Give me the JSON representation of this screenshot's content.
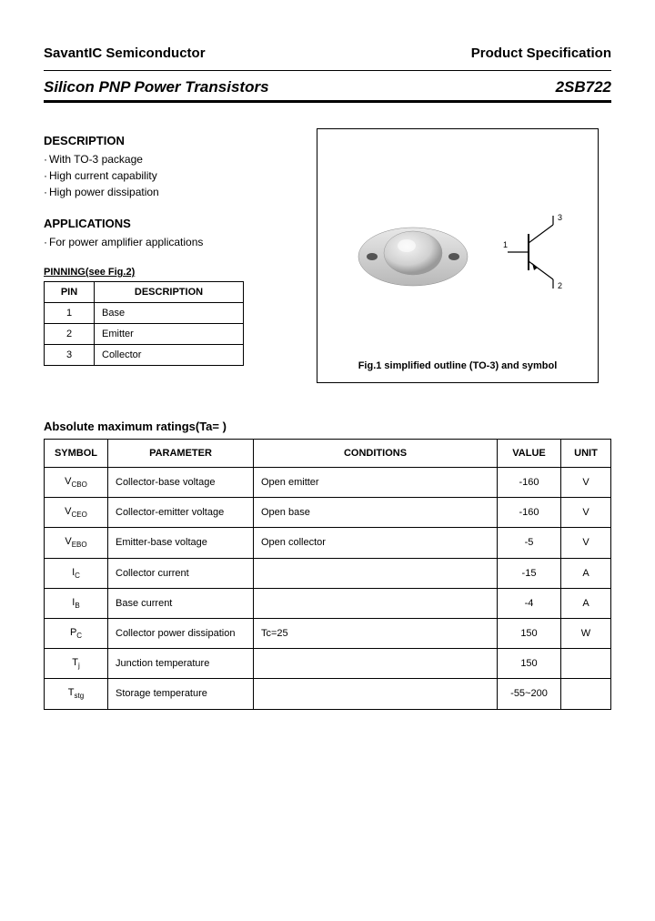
{
  "header": {
    "company": "SavantIC Semiconductor",
    "doc_type": "Product Specification"
  },
  "title": {
    "product_line": "Silicon PNP Power Transistors",
    "part_number": "2SB722"
  },
  "description": {
    "heading": "DESCRIPTION",
    "items": [
      "With TO-3 package",
      "High current capability",
      "High power dissipation"
    ]
  },
  "applications": {
    "heading": "APPLICATIONS",
    "items": [
      "For power amplifier applications"
    ]
  },
  "pinning": {
    "heading": "PINNING(see Fig.2)",
    "columns": [
      "PIN",
      "DESCRIPTION"
    ],
    "rows": [
      [
        "1",
        "Base"
      ],
      [
        "2",
        "Emitter"
      ],
      [
        "3",
        "Collector"
      ]
    ]
  },
  "figure": {
    "caption": "Fig.1 simplified outline (TO-3) and symbol",
    "pin_labels": [
      "1",
      "2",
      "3"
    ],
    "package_color": "#d8d8d8",
    "package_highlight": "#f0f0f0",
    "package_shadow": "#a0a0a0"
  },
  "ratings": {
    "heading": "Absolute maximum ratings(Ta=  )",
    "columns": [
      "SYMBOL",
      "PARAMETER",
      "CONDITIONS",
      "VALUE",
      "UNIT"
    ],
    "rows": [
      {
        "symbol": "V",
        "sub": "CBO",
        "param": "Collector-base voltage",
        "cond": "Open emitter",
        "value": "-160",
        "unit": "V"
      },
      {
        "symbol": "V",
        "sub": "CEO",
        "param": "Collector-emitter voltage",
        "cond": "Open base",
        "value": "-160",
        "unit": "V"
      },
      {
        "symbol": "V",
        "sub": "EBO",
        "param": "Emitter-base voltage",
        "cond": "Open collector",
        "value": "-5",
        "unit": "V"
      },
      {
        "symbol": "I",
        "sub": "C",
        "param": "Collector current",
        "cond": "",
        "value": "-15",
        "unit": "A"
      },
      {
        "symbol": "I",
        "sub": "B",
        "param": "Base current",
        "cond": "",
        "value": "-4",
        "unit": "A"
      },
      {
        "symbol": "P",
        "sub": "C",
        "param": "Collector power dissipation",
        "cond": "Tc=25",
        "value": "150",
        "unit": "W"
      },
      {
        "symbol": "T",
        "sub": "j",
        "param": "Junction temperature",
        "cond": "",
        "value": "150",
        "unit": ""
      },
      {
        "symbol": "T",
        "sub": "stg",
        "param": "Storage temperature",
        "cond": "",
        "value": "-55~200",
        "unit": ""
      }
    ]
  }
}
